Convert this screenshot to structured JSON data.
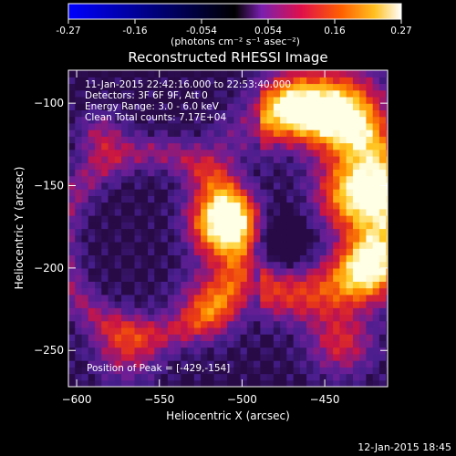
{
  "colorbar": {
    "ticks": [
      "-0.27",
      "-0.16",
      "-0.054",
      "0.054",
      "0.16",
      "0.27"
    ],
    "unit_label": "(photons cm⁻² s⁻¹ asec⁻²)"
  },
  "plot": {
    "title": "Reconstructed RHESSI Image",
    "info_lines": [
      "11-Jan-2015 22:42:16.000 to 22:53:40.000",
      "Detectors: 3F 6F 9F, Att 0",
      "Energy Range: 3.0 - 6.0 keV",
      "Clean     Total counts: 7.17E+04"
    ],
    "peak_text": "Position of Peak = [-429,-154]",
    "timestamp": "12-Jan-2015 18:45"
  },
  "chart_data": {
    "type": "heatmap",
    "title": "Reconstructed RHESSI Image",
    "xlabel": "Heliocentric X (arcsec)",
    "ylabel": "Heliocentric Y (arcsec)",
    "xlim": [
      -605,
      -412
    ],
    "ylim": [
      -272,
      -80
    ],
    "xticks": [
      -600,
      -550,
      -500,
      -450
    ],
    "yticks": [
      -100,
      -150,
      -200,
      -250
    ],
    "color_range": [
      -0.27,
      0.27
    ],
    "colormap": [
      "#0000ff",
      "#000000",
      "#8a2be2",
      "#ff0000",
      "#ffa500",
      "#ffff99",
      "#ffffff"
    ],
    "peak_position": [
      -429,
      -154
    ],
    "sources": [
      {
        "x": -510,
        "y": -172,
        "amplitude": 0.27,
        "width_arcsec": 13
      },
      {
        "x": -430,
        "y": -155,
        "amplitude": 0.26,
        "width_arcsec": 16
      },
      {
        "x": -440,
        "y": -105,
        "amplitude": 0.2,
        "width_arcsec": 18
      },
      {
        "x": -470,
        "y": -100,
        "amplitude": 0.14,
        "width_arcsec": 14
      },
      {
        "x": -422,
        "y": -200,
        "amplitude": 0.18,
        "width_arcsec": 14
      },
      {
        "x": -440,
        "y": -245,
        "amplitude": 0.12,
        "width_arcsec": 14
      },
      {
        "x": -520,
        "y": -222,
        "amplitude": 0.12,
        "width_arcsec": 14
      },
      {
        "x": -585,
        "y": -120,
        "amplitude": 0.09,
        "width_arcsec": 10
      },
      {
        "x": -570,
        "y": -250,
        "amplitude": 0.1,
        "width_arcsec": 14
      }
    ]
  }
}
